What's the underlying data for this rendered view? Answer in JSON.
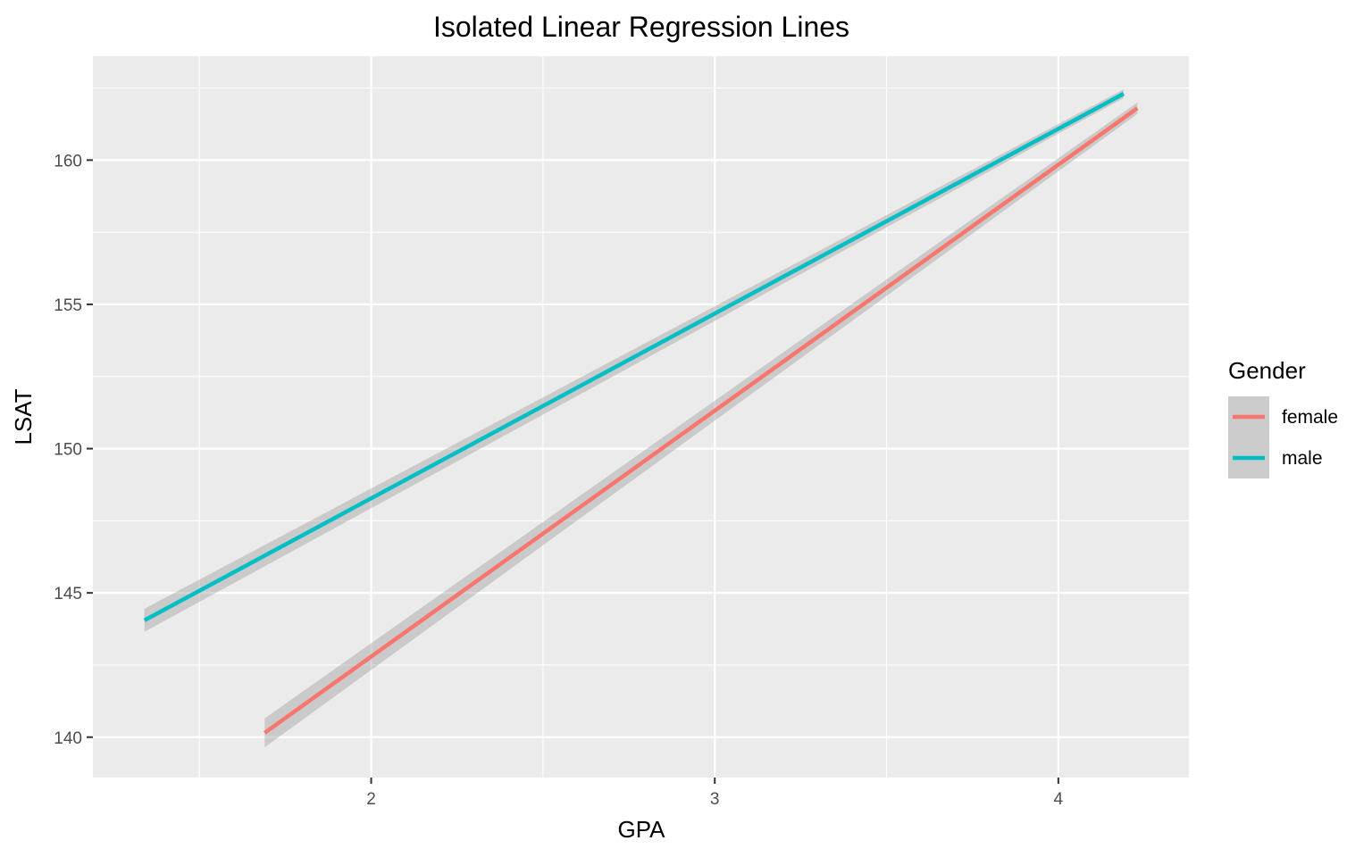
{
  "chart_data": {
    "type": "line",
    "title": "Isolated Linear Regression Lines",
    "xlabel": "GPA",
    "ylabel": "LSAT",
    "xlim": [
      1.19,
      4.38
    ],
    "ylim": [
      138.6,
      163.6
    ],
    "x_ticks": [
      2,
      3,
      4
    ],
    "x_tick_labels": [
      "2",
      "3",
      "4"
    ],
    "y_ticks": [
      140,
      145,
      150,
      155,
      160
    ],
    "y_tick_labels": [
      "140",
      "145",
      "150",
      "155",
      "160"
    ],
    "grid": true,
    "confidence_band": true,
    "legend": {
      "title": "Gender",
      "position": "right"
    },
    "series": [
      {
        "name": "female",
        "color": "#F8766D",
        "points": [
          [
            1.69,
            140.15
          ],
          [
            4.23,
            161.8
          ]
        ],
        "band_halfwidth": [
          0.5,
          0.2
        ]
      },
      {
        "name": "male",
        "color": "#00BFC4",
        "points": [
          [
            1.34,
            144.05
          ],
          [
            4.19,
            162.3
          ]
        ],
        "band_halfwidth": [
          0.4,
          0.15
        ]
      }
    ]
  }
}
